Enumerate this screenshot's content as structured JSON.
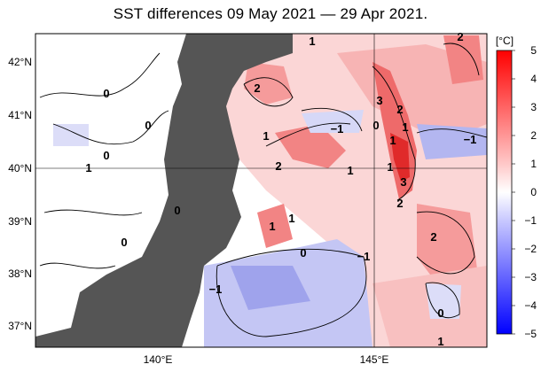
{
  "title": "SST differences 09 May 2021 — 29 Apr 2021.",
  "lat_labels": [
    "42°N",
    "41°N",
    "40°N",
    "39°N",
    "38°N",
    "37°N"
  ],
  "lon_labels": [
    "140°E",
    "145°E"
  ],
  "colorbar": {
    "unit": "[°C]",
    "ticks": [
      "5",
      "4",
      "3",
      "2",
      "1",
      "0",
      "−1",
      "−2",
      "−3",
      "−4",
      "−5"
    ],
    "warm_color": "#e8161c",
    "cold_color": "#1c26e8",
    "zero_color": "#ffffff"
  },
  "contour_labels": [
    "2",
    "1",
    "0",
    "0",
    "1",
    "2",
    "2",
    "3",
    "2",
    "1",
    "1",
    "−1",
    "0",
    "−1",
    "1",
    "1",
    "1",
    "0",
    "1",
    "3",
    "2",
    "2",
    "1",
    "0",
    "−1",
    "−1",
    "0",
    "1",
    "0",
    "0"
  ],
  "land_color": "#555555"
}
